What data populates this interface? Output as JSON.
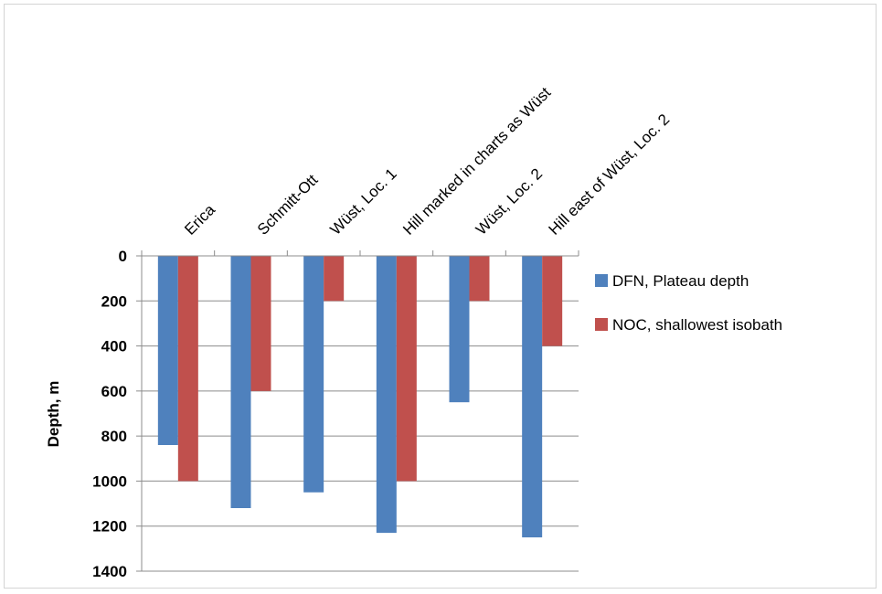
{
  "chart_data": {
    "type": "bar",
    "title": "",
    "xlabel": "",
    "ylabel": "Depth, m",
    "ylim": [
      0,
      1400
    ],
    "y_inverted": true,
    "y_ticks": [
      0,
      200,
      400,
      600,
      800,
      1000,
      1200,
      1400
    ],
    "grid": "horizontal",
    "legend_position": "right",
    "categories": [
      "Erica",
      "Schmitt-Ott",
      "Wüst, Loc. 1",
      "Hill marked in charts as Wüst",
      "Wüst, Loc. 2",
      "Hill east of Wüst, Loc. 2"
    ],
    "series": [
      {
        "name": "DFN, Plateau depth",
        "color": "#4F81BD",
        "values": [
          840,
          1120,
          1050,
          1230,
          650,
          1250
        ]
      },
      {
        "name": "NOC, shallowest isobath",
        "color": "#C0504D",
        "values": [
          1000,
          600,
          200,
          1000,
          200,
          400
        ]
      }
    ]
  }
}
